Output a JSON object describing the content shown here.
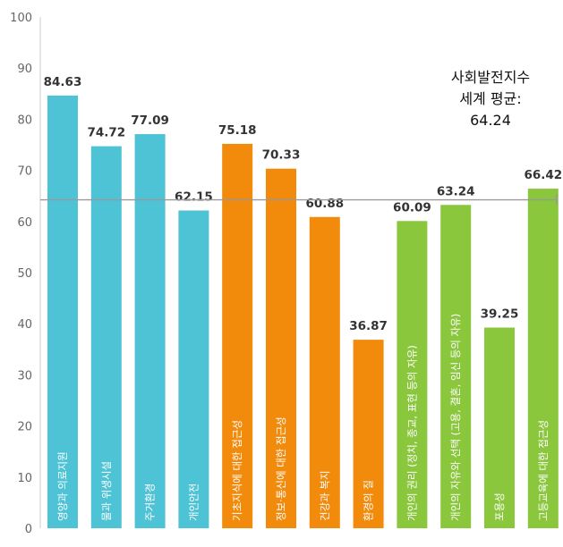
{
  "chart_data": {
    "type": "bar",
    "ylim": [
      0,
      100
    ],
    "yticks": [
      0,
      10,
      20,
      30,
      40,
      50,
      60,
      70,
      80,
      90,
      100
    ],
    "grid": false,
    "categories": [
      "영양과 의료지원",
      "물과 위생시설",
      "주거환경",
      "개인안전",
      "기초지식에 대한 접근성",
      "정보·통신에 대한 접근성",
      "건강과 복지",
      "환경의 질",
      "개인의 권리 (정치, 종교, 표현 등의 자유)",
      "개인의 자유와 선택 (고용, 결혼, 임신 등의 자유)",
      "포용성",
      "고등교육에 대한 접근성"
    ],
    "values": [
      84.63,
      74.72,
      77.09,
      62.15,
      75.18,
      70.33,
      60.88,
      36.87,
      60.09,
      63.24,
      39.25,
      66.42
    ],
    "value_labels": [
      "84.63",
      "74.72",
      "77.09",
      "62.15",
      "75.18",
      "70.33",
      "60.88",
      "36.87",
      "60.09",
      "63.24",
      "39.25",
      "66.42"
    ],
    "bar_colors": [
      "#4ec3d6",
      "#4ec3d6",
      "#4ec3d6",
      "#4ec3d6",
      "#f28a0b",
      "#f28a0b",
      "#f28a0b",
      "#f28a0b",
      "#8bc73d",
      "#8bc73d",
      "#8bc73d",
      "#8bc73d"
    ],
    "reference_line": {
      "value": 64.24,
      "color": "#999999",
      "label_lines": [
        "사회발전지수",
        "세계 평균:",
        "64.24"
      ]
    }
  },
  "colors": {
    "group_1": "#4ec3d6",
    "group_2": "#f28a0b",
    "group_3": "#8bc73d",
    "axis": "#cccccc"
  }
}
